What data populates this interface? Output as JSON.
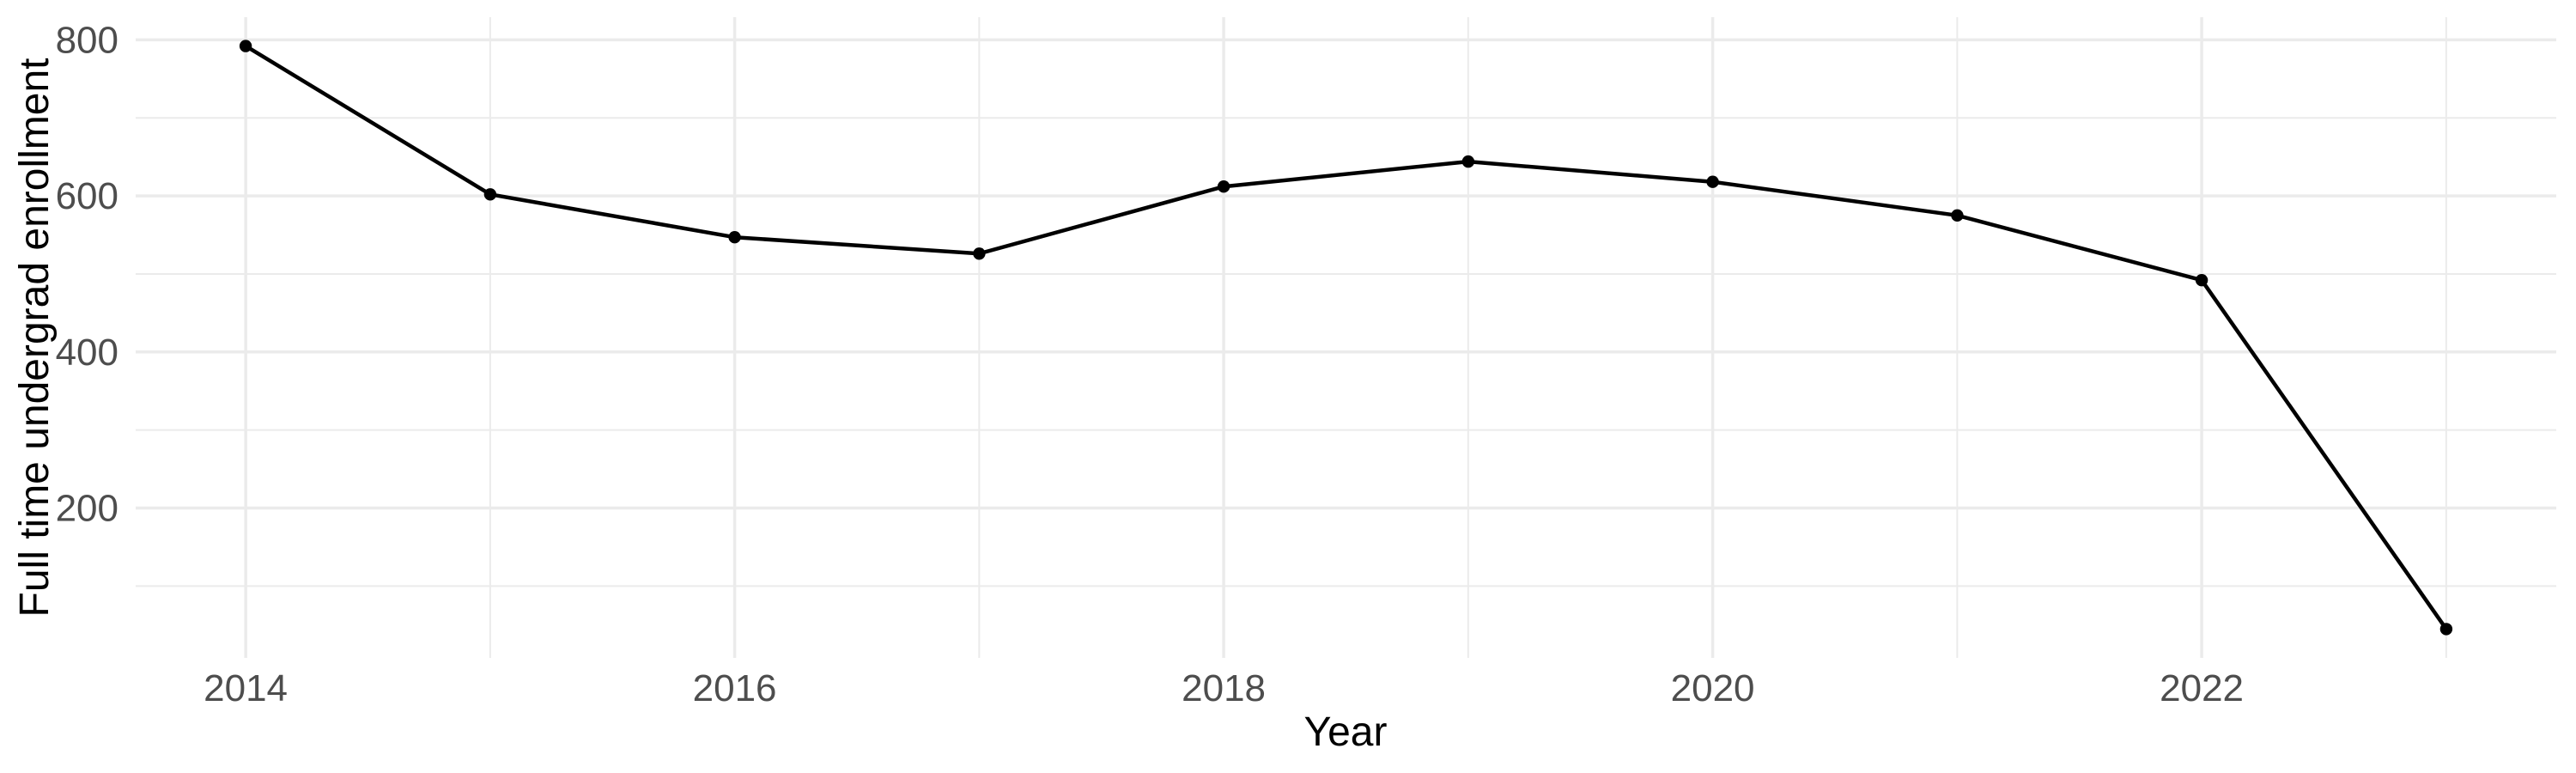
{
  "chart_data": {
    "type": "line",
    "title": "",
    "xlabel": "Year",
    "ylabel": "Full time undergrad enrollment",
    "x": [
      2014,
      2015,
      2016,
      2017,
      2018,
      2019,
      2020,
      2021,
      2022,
      2023
    ],
    "series": [
      {
        "name": "Full time undergrad enrollment",
        "values": [
          792,
          602,
          547,
          526,
          612,
          644,
          618,
          575,
          492,
          45
        ]
      }
    ],
    "x_tick_labels": [
      "2014",
      "2016",
      "2018",
      "2020",
      "2022"
    ],
    "x_tick_values": [
      2014,
      2016,
      2018,
      2020,
      2022
    ],
    "x_minor_tick_values": [
      2015,
      2017,
      2019,
      2021,
      2023
    ],
    "y_tick_labels": [
      "200",
      "400",
      "600",
      "800"
    ],
    "y_tick_values": [
      200,
      400,
      600,
      800
    ],
    "y_minor_tick_values": [
      100,
      300,
      500,
      700
    ],
    "xlim": [
      2013.55,
      2023.45
    ],
    "ylim": [
      8,
      829
    ],
    "grid": "on",
    "legend": "none",
    "line_color": "#000000",
    "point_color": "#000000",
    "gridline_color": "#EBEBEB",
    "tick_label_color": "#4D4D4D",
    "axis_title_color": "#000000",
    "background_color": "#FFFFFF"
  }
}
